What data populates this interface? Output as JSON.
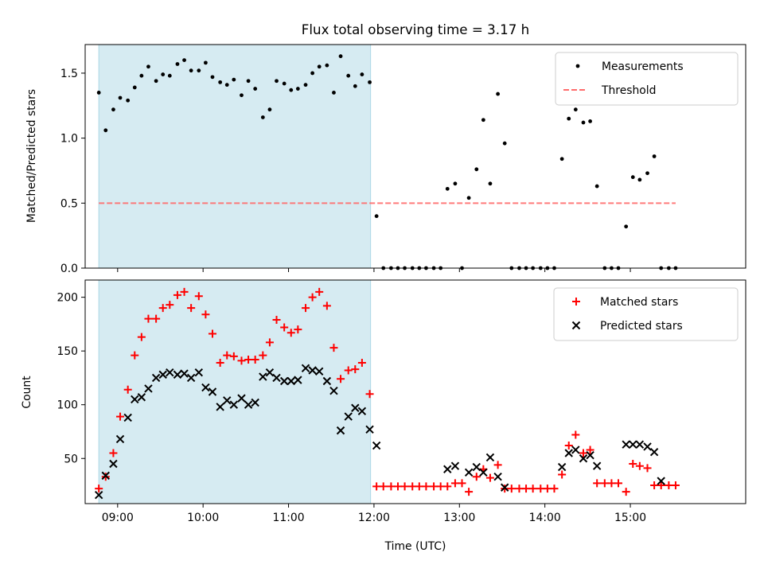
{
  "chart_data": {
    "type": "scatter",
    "title": "Flux total observing time = 3.17 h",
    "xlabel": "Time (UTC)",
    "xlim": [
      8.62,
      16.35
    ],
    "x_ticks": [
      9,
      10,
      11,
      12,
      13,
      14,
      15
    ],
    "x_tick_labels": [
      "09:00",
      "10:00",
      "11:00",
      "12:00",
      "13:00",
      "14:00",
      "15:00"
    ],
    "shaded_interval": [
      8.78,
      11.96
    ],
    "x": [
      8.78,
      8.86,
      8.95,
      9.03,
      9.12,
      9.2,
      9.28,
      9.36,
      9.45,
      9.53,
      9.61,
      9.7,
      9.78,
      9.86,
      9.95,
      10.03,
      10.11,
      10.2,
      10.28,
      10.36,
      10.45,
      10.53,
      10.61,
      10.7,
      10.78,
      10.86,
      10.95,
      11.03,
      11.11,
      11.2,
      11.28,
      11.36,
      11.45,
      11.53,
      11.61,
      11.7,
      11.78,
      11.86,
      11.95,
      12.03,
      12.11,
      12.2,
      12.28,
      12.36,
      12.45,
      12.53,
      12.61,
      12.7,
      12.78,
      12.86,
      12.95,
      13.03,
      13.11,
      13.2,
      13.28,
      13.36,
      13.45,
      13.53,
      13.61,
      13.7,
      13.78,
      13.86,
      13.95,
      14.03,
      14.11,
      14.2,
      14.28,
      14.36,
      14.45,
      14.53,
      14.61,
      14.7,
      14.78,
      14.86,
      14.95,
      15.03,
      15.11,
      15.2,
      15.28,
      15.36,
      15.45,
      15.53
    ],
    "panels": [
      {
        "ylabel": "Matched/Predicted stars",
        "ylim": [
          0,
          1.72
        ],
        "y_ticks": [
          0.0,
          0.5,
          1.0,
          1.5
        ],
        "y_tick_labels": [
          "0.0",
          "0.5",
          "1.0",
          "1.5"
        ],
        "legend": [
          "Measurements",
          "Threshold"
        ],
        "threshold": {
          "value": 0.5,
          "x_range": [
            8.78,
            15.53
          ]
        },
        "series": [
          {
            "name": "Measurements",
            "values": [
              1.35,
              1.06,
              1.22,
              1.31,
              1.29,
              1.39,
              1.48,
              1.55,
              1.44,
              1.49,
              1.48,
              1.57,
              1.6,
              1.52,
              1.52,
              1.58,
              1.47,
              1.43,
              1.41,
              1.45,
              1.33,
              1.44,
              1.38,
              1.16,
              1.22,
              1.44,
              1.42,
              1.37,
              1.38,
              1.41,
              1.5,
              1.55,
              1.56,
              1.35,
              1.63,
              1.48,
              1.4,
              1.49,
              1.43,
              0.4,
              0,
              0,
              0,
              0,
              0,
              0,
              0,
              0,
              0,
              0.61,
              0.65,
              0,
              0.54,
              0.76,
              1.14,
              0.65,
              1.34,
              0.96,
              0,
              0,
              0,
              0,
              0,
              0,
              0,
              0.84,
              1.15,
              1.22,
              1.12,
              1.13,
              0.63,
              0,
              0,
              0,
              0.32,
              0.7,
              0.68,
              0.73,
              0.86,
              0,
              0,
              0
            ]
          }
        ]
      },
      {
        "ylabel": "Count",
        "ylim": [
          8,
          216
        ],
        "y_ticks": [
          50,
          100,
          150,
          200
        ],
        "y_tick_labels": [
          "50",
          "100",
          "150",
          "200"
        ],
        "legend": [
          "Matched stars",
          "Predicted stars"
        ],
        "series": [
          {
            "name": "Matched stars",
            "color": "#ff0000",
            "values": [
              22,
              33,
              55,
              89,
              114,
              146,
              163,
              180,
              180,
              190,
              193,
              202,
              205,
              190,
              201,
              184,
              166,
              139,
              146,
              145,
              141,
              142,
              142,
              146,
              158,
              179,
              172,
              167,
              170,
              190,
              200,
              205,
              192,
              153,
              124,
              132,
              133,
              139,
              110,
              24,
              24,
              24,
              24,
              24,
              24,
              24,
              24,
              24,
              24,
              24,
              27,
              27,
              19,
              33,
              40,
              32,
              44,
              22,
              22,
              22,
              22,
              22,
              22,
              22,
              22,
              35,
              62,
              72,
              55,
              58,
              27,
              27,
              27,
              27,
              19,
              45,
              43,
              41,
              25,
              25,
              25,
              25
            ]
          },
          {
            "name": "Predicted stars",
            "color": "#000000",
            "values": [
              16,
              34,
              45,
              68,
              88,
              105,
              107,
              115,
              125,
              128,
              130,
              128,
              129,
              125,
              130,
              116,
              112,
              98,
              104,
              100,
              106,
              100,
              102,
              126,
              130,
              125,
              122,
              122,
              123,
              134,
              132,
              131,
              122,
              113,
              76,
              89,
              97,
              94,
              77,
              62,
              null,
              null,
              null,
              null,
              null,
              null,
              null,
              null,
              null,
              40,
              43,
              null,
              37,
              42,
              37,
              51,
              33,
              23,
              null,
              null,
              null,
              null,
              null,
              null,
              null,
              42,
              55,
              58,
              50,
              53,
              43,
              null,
              null,
              null,
              63,
              63,
              63,
              61,
              56,
              29,
              null,
              null
            ]
          }
        ]
      }
    ]
  }
}
